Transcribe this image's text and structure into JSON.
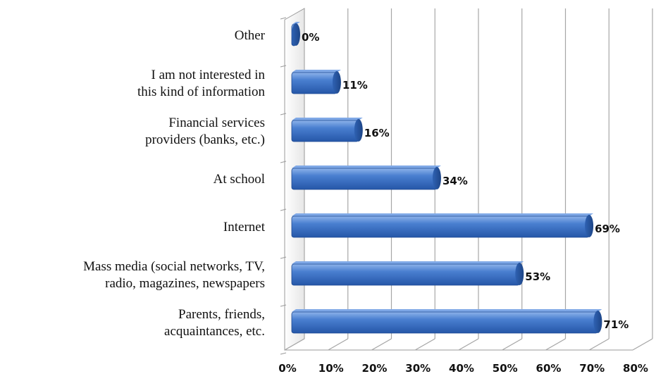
{
  "chart_data": {
    "type": "bar",
    "orientation": "horizontal",
    "three_d": true,
    "categories": [
      [
        "Other"
      ],
      [
        "I am not interested in",
        "this kind of information"
      ],
      [
        "Financial services",
        "providers (banks, etc.)"
      ],
      [
        "At school"
      ],
      [
        "Internet"
      ],
      [
        "Mass media (social networks, TV,",
        "radio, magazines, newspapers"
      ],
      [
        "Parents, friends,",
        "acquaintances, etc."
      ]
    ],
    "values": [
      0,
      11,
      16,
      34,
      69,
      53,
      71
    ],
    "value_labels": [
      "0%",
      "11%",
      "16%",
      "34%",
      "69%",
      "53%",
      "71%"
    ],
    "xlim": [
      0,
      80
    ],
    "xticks": [
      "0%",
      "10%",
      "20%",
      "30%",
      "40%",
      "50%",
      "60%",
      "70%",
      "80%"
    ],
    "grid": true,
    "legend": "none",
    "bar_color": "#3a6fc4",
    "bar_top_color": "#7fa8e6",
    "bar_dark_color": "#1f4c93",
    "grid_color": "#a6a6a6"
  }
}
